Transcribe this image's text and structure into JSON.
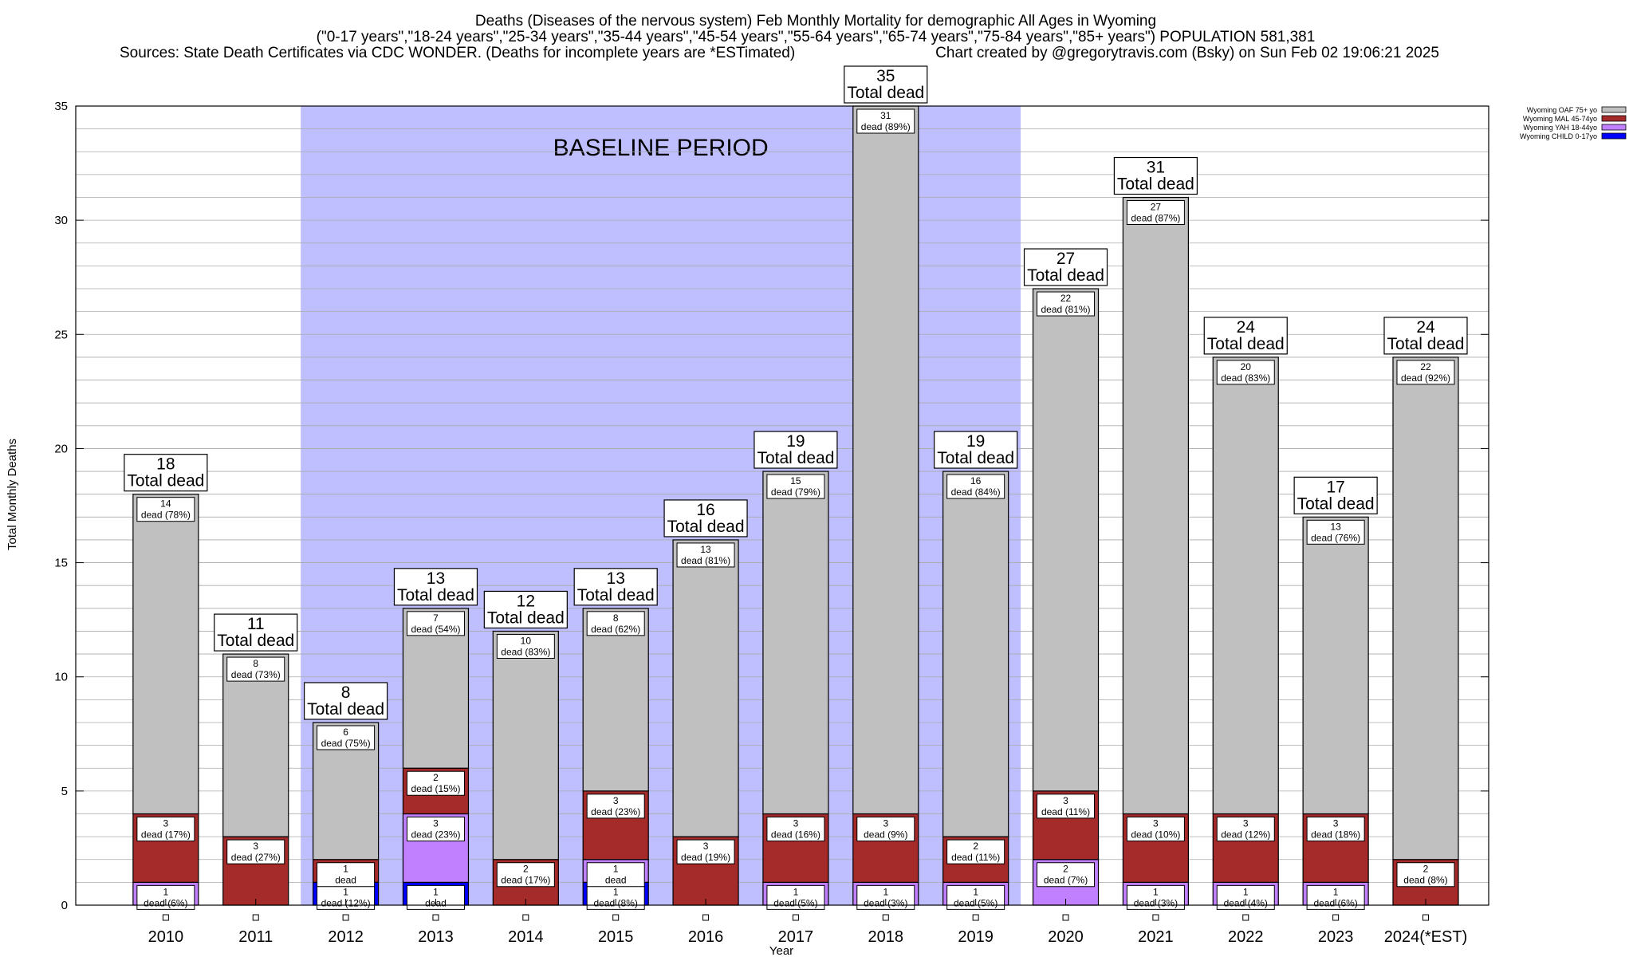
{
  "chart_data": {
    "type": "bar",
    "stacked": true,
    "title_lines": [
      "Deaths (Diseases of the nervous system) Feb Monthly Mortality for demographic All Ages in Wyoming",
      "(\"0-17 years\",\"18-24 years\",\"25-34 years\",\"35-44 years\",\"45-54 years\",\"55-64 years\",\"65-74 years\",\"75-84 years\",\"85+ years\") POPULATION 581,381",
      "Sources: State Death Certificates via CDC WONDER. (Deaths for incomplete years are *ESTimated)",
      "Chart created by @gregorytravis.com (Bsky) on Sun Feb 02 19:06:21 2025"
    ],
    "xlabel": "Year",
    "ylabel": "Total Monthly Deaths",
    "ylim": [
      0,
      35
    ],
    "yticks": [
      0,
      5,
      10,
      15,
      20,
      25,
      30,
      35
    ],
    "grid": true,
    "legend_position": "top-right",
    "baseline_label": "BASELINE PERIOD",
    "baseline_range": [
      "2012",
      "2019"
    ],
    "total_label": "Total dead",
    "dead_word": "dead",
    "categories": [
      "2010",
      "2011",
      "2012",
      "2013",
      "2014",
      "2015",
      "2016",
      "2017",
      "2018",
      "2019",
      "2020",
      "2021",
      "2022",
      "2023",
      "2024(*EST)"
    ],
    "totals": [
      18,
      11,
      8,
      13,
      12,
      13,
      16,
      19,
      35,
      19,
      27,
      31,
      24,
      17,
      24
    ],
    "series": [
      {
        "name": "Wyoming CHILD 0-17yo",
        "color": "#0000ff",
        "values": [
          0,
          0,
          1,
          1,
          0,
          1,
          0,
          0,
          0,
          0,
          0,
          0,
          0,
          0,
          0
        ],
        "pct": [
          "",
          "",
          "12%",
          "",
          "",
          "8%",
          "",
          "",
          "",
          "",
          "",
          "",
          "",
          "",
          ""
        ]
      },
      {
        "name": "Wyoming YAH 18-44yo",
        "color": "#c080ff",
        "values": [
          1,
          0,
          0,
          3,
          0,
          1,
          0,
          1,
          1,
          1,
          2,
          1,
          1,
          1,
          0
        ],
        "pct": [
          "6%",
          "",
          "",
          "23%",
          "",
          "",
          "",
          "5%",
          "3%",
          "5%",
          "7%",
          "3%",
          "4%",
          "6%",
          ""
        ]
      },
      {
        "name": "Wyoming MAL 45-74yo",
        "color": "#a52a2a",
        "values": [
          3,
          3,
          1,
          2,
          2,
          3,
          3,
          3,
          3,
          2,
          3,
          3,
          3,
          3,
          2
        ],
        "pct": [
          "17%",
          "27%",
          "",
          "15%",
          "17%",
          "23%",
          "19%",
          "16%",
          "9%",
          "11%",
          "11%",
          "10%",
          "12%",
          "18%",
          "8%"
        ]
      },
      {
        "name": "Wyoming OAF 75+ yo",
        "color": "#c0c0c0",
        "values": [
          14,
          8,
          6,
          7,
          10,
          8,
          13,
          15,
          31,
          16,
          22,
          27,
          20,
          13,
          22
        ],
        "pct": [
          "78%",
          "73%",
          "75%",
          "54%",
          "83%",
          "62%",
          "81%",
          "79%",
          "89%",
          "84%",
          "81%",
          "87%",
          "83%",
          "76%",
          "92%"
        ]
      }
    ]
  }
}
